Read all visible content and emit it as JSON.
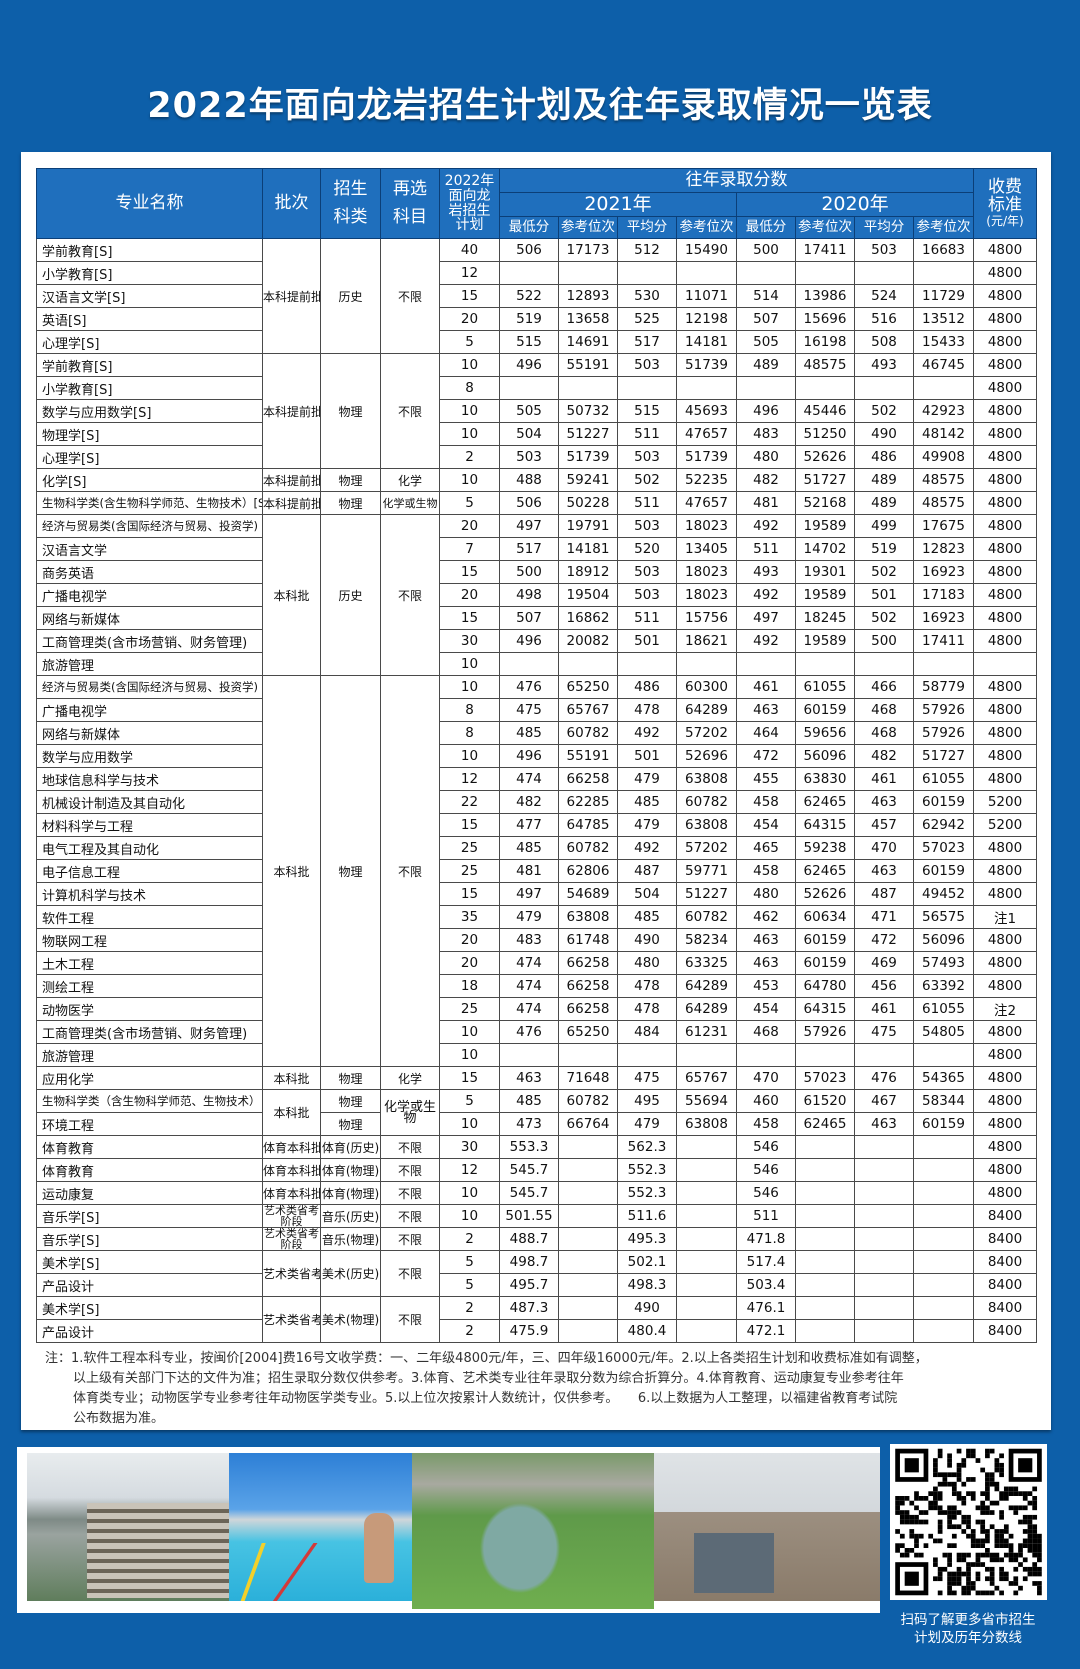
{
  "title": "2022年面向龙岩招生计划及往年录取情况一览表",
  "header": {
    "name": "专业名称",
    "batch": "批次",
    "subject": [
      "招生",
      "科类"
    ],
    "reselect": [
      "再选",
      "科目"
    ],
    "plan": [
      "2022年",
      "面向龙",
      "岩招生",
      "计划"
    ],
    "past": "往年录取分数",
    "year1": "2021年",
    "year2": "2020年",
    "cols": [
      "最低分",
      "参考位次",
      "平均分",
      "参考位次",
      "最低分",
      "参考位次",
      "平均分",
      "参考位次"
    ],
    "fee": [
      "收费",
      "标准",
      "(元/年)"
    ]
  },
  "groups": [
    {
      "batch": "本科提前批",
      "subject": "历史",
      "reselect": "不限",
      "rows": [
        {
          "name": "学前教育[S]",
          "plan": "40",
          "v": [
            "506",
            "17173",
            "512",
            "15490",
            "500",
            "17411",
            "503",
            "16683"
          ],
          "fee": "4800"
        },
        {
          "name": "小学教育[S]",
          "plan": "12",
          "v": [],
          "fee": "4800"
        },
        {
          "name": "汉语言文学[S]",
          "plan": "15",
          "v": [
            "522",
            "12893",
            "530",
            "11071",
            "514",
            "13986",
            "524",
            "11729"
          ],
          "fee": "4800"
        },
        {
          "name": "英语[S]",
          "plan": "20",
          "v": [
            "519",
            "13658",
            "525",
            "12198",
            "507",
            "15696",
            "516",
            "13512"
          ],
          "fee": "4800"
        },
        {
          "name": "心理学[S]",
          "plan": "5",
          "v": [
            "515",
            "14691",
            "517",
            "14181",
            "505",
            "16198",
            "508",
            "15433"
          ],
          "fee": "4800"
        }
      ]
    },
    {
      "batch": "本科提前批",
      "subject": "物理",
      "reselect": "不限",
      "rows": [
        {
          "name": "学前教育[S]",
          "plan": "10",
          "v": [
            "496",
            "55191",
            "503",
            "51739",
            "489",
            "48575",
            "493",
            "46745"
          ],
          "fee": "4800"
        },
        {
          "name": "小学教育[S]",
          "plan": "8",
          "v": [],
          "fee": "4800"
        },
        {
          "name": "数学与应用数学[S]",
          "plan": "10",
          "v": [
            "505",
            "50732",
            "515",
            "45693",
            "496",
            "45446",
            "502",
            "42923"
          ],
          "fee": "4800"
        },
        {
          "name": "物理学[S]",
          "plan": "10",
          "v": [
            "504",
            "51227",
            "511",
            "47657",
            "483",
            "51250",
            "490",
            "48142"
          ],
          "fee": "4800"
        },
        {
          "name": "心理学[S]",
          "plan": "2",
          "v": [
            "503",
            "51739",
            "503",
            "51739",
            "480",
            "52626",
            "486",
            "49908"
          ],
          "fee": "4800"
        }
      ]
    },
    {
      "batch": "本科提前批",
      "subject": "物理",
      "reselect": "化学",
      "rows": [
        {
          "name": "化学[S]",
          "plan": "10",
          "v": [
            "488",
            "59241",
            "502",
            "52235",
            "482",
            "51727",
            "489",
            "48575"
          ],
          "fee": "4800"
        }
      ]
    },
    {
      "batch": "本科提前批",
      "subject": "物理",
      "reselect": "化学或生物",
      "rows": [
        {
          "name": "生物科学类(含生物科学师范、生物技术）[S]",
          "plan": "5",
          "v": [
            "506",
            "50228",
            "511",
            "47657",
            "481",
            "52168",
            "489",
            "48575"
          ],
          "fee": "4800"
        }
      ]
    },
    {
      "batch": "本科批",
      "subject": "历史",
      "reselect": "不限",
      "rows": [
        {
          "name": "经济与贸易类(含国际经济与贸易、投资学)",
          "plan": "20",
          "v": [
            "497",
            "19791",
            "503",
            "18023",
            "492",
            "19589",
            "499",
            "17675"
          ],
          "fee": "4800"
        },
        {
          "name": "汉语言文学",
          "plan": "7",
          "v": [
            "517",
            "14181",
            "520",
            "13405",
            "511",
            "14702",
            "519",
            "12823"
          ],
          "fee": "4800"
        },
        {
          "name": "商务英语",
          "plan": "15",
          "v": [
            "500",
            "18912",
            "503",
            "18023",
            "493",
            "19301",
            "502",
            "16923"
          ],
          "fee": "4800"
        },
        {
          "name": "广播电视学",
          "plan": "20",
          "v": [
            "498",
            "19504",
            "503",
            "18023",
            "492",
            "19589",
            "501",
            "17183"
          ],
          "fee": "4800"
        },
        {
          "name": "网络与新媒体",
          "plan": "15",
          "v": [
            "507",
            "16862",
            "511",
            "15756",
            "497",
            "18245",
            "502",
            "16923"
          ],
          "fee": "4800"
        },
        {
          "name": "工商管理类(含市场营销、财务管理)",
          "plan": "30",
          "v": [
            "496",
            "20082",
            "501",
            "18621",
            "492",
            "19589",
            "500",
            "17411"
          ],
          "fee": "4800"
        },
        {
          "name": "旅游管理",
          "plan": "10",
          "v": [],
          "fee": ""
        }
      ]
    },
    {
      "batch": "本科批",
      "subject": "物理",
      "reselect": "不限",
      "rows": [
        {
          "name": "经济与贸易类(含国际经济与贸易、投资学)",
          "plan": "10",
          "v": [
            "476",
            "65250",
            "486",
            "60300",
            "461",
            "61055",
            "466",
            "58779"
          ],
          "fee": "4800"
        },
        {
          "name": "广播电视学",
          "plan": "8",
          "v": [
            "475",
            "65767",
            "478",
            "64289",
            "463",
            "60159",
            "468",
            "57926"
          ],
          "fee": "4800"
        },
        {
          "name": "网络与新媒体",
          "plan": "8",
          "v": [
            "485",
            "60782",
            "492",
            "57202",
            "464",
            "59656",
            "468",
            "57926"
          ],
          "fee": "4800"
        },
        {
          "name": "数学与应用数学",
          "plan": "10",
          "v": [
            "496",
            "55191",
            "501",
            "52696",
            "472",
            "56096",
            "482",
            "51727"
          ],
          "fee": "4800"
        },
        {
          "name": "地球信息科学与技术",
          "plan": "12",
          "v": [
            "474",
            "66258",
            "479",
            "63808",
            "455",
            "63830",
            "461",
            "61055"
          ],
          "fee": "4800"
        },
        {
          "name": "机械设计制造及其自动化",
          "plan": "22",
          "v": [
            "482",
            "62285",
            "485",
            "60782",
            "458",
            "62465",
            "463",
            "60159"
          ],
          "fee": "5200"
        },
        {
          "name": "材料科学与工程",
          "plan": "15",
          "v": [
            "477",
            "64785",
            "479",
            "63808",
            "454",
            "64315",
            "457",
            "62942"
          ],
          "fee": "5200"
        },
        {
          "name": "电气工程及其自动化",
          "plan": "25",
          "v": [
            "485",
            "60782",
            "492",
            "57202",
            "465",
            "59238",
            "470",
            "57023"
          ],
          "fee": "4800"
        },
        {
          "name": "电子信息工程",
          "plan": "25",
          "v": [
            "481",
            "62806",
            "487",
            "59771",
            "458",
            "62465",
            "463",
            "60159"
          ],
          "fee": "4800"
        },
        {
          "name": "计算机科学与技术",
          "plan": "15",
          "v": [
            "497",
            "54689",
            "504",
            "51227",
            "480",
            "52626",
            "487",
            "49452"
          ],
          "fee": "4800"
        },
        {
          "name": "软件工程",
          "plan": "35",
          "v": [
            "479",
            "63808",
            "485",
            "60782",
            "462",
            "60634",
            "471",
            "56575"
          ],
          "fee": "注1"
        },
        {
          "name": "物联网工程",
          "plan": "20",
          "v": [
            "483",
            "61748",
            "490",
            "58234",
            "463",
            "60159",
            "472",
            "56096"
          ],
          "fee": "4800"
        },
        {
          "name": "土木工程",
          "plan": "20",
          "v": [
            "474",
            "66258",
            "480",
            "63325",
            "463",
            "60159",
            "469",
            "57493"
          ],
          "fee": "4800"
        },
        {
          "name": "测绘工程",
          "plan": "18",
          "v": [
            "474",
            "66258",
            "478",
            "64289",
            "453",
            "64780",
            "456",
            "63392"
          ],
          "fee": "4800"
        },
        {
          "name": "动物医学",
          "plan": "25",
          "v": [
            "474",
            "66258",
            "478",
            "64289",
            "454",
            "64315",
            "461",
            "61055"
          ],
          "fee": "注2"
        },
        {
          "name": "工商管理类(含市场营销、财务管理)",
          "plan": "10",
          "v": [
            "476",
            "65250",
            "484",
            "61231",
            "468",
            "57926",
            "475",
            "54805"
          ],
          "fee": "4800"
        },
        {
          "name": "旅游管理",
          "plan": "10",
          "v": [],
          "fee": "4800"
        }
      ]
    },
    {
      "batch": "本科批",
      "subject": "物理",
      "reselect": "化学",
      "rows": [
        {
          "name": "应用化学",
          "plan": "15",
          "v": [
            "463",
            "71648",
            "475",
            "65767",
            "470",
            "57023",
            "476",
            "54365"
          ],
          "fee": "4800"
        }
      ]
    },
    {
      "batch": "本科批",
      "reselect": "化学或生物",
      "rows": [
        {
          "name": "生物科学类（含生物科学师范、生物技术）",
          "subject": "物理",
          "plan": "5",
          "v": [
            "485",
            "60782",
            "495",
            "55694",
            "460",
            "61520",
            "467",
            "58344"
          ],
          "fee": "4800"
        },
        {
          "name": "环境工程",
          "subject": "物理",
          "plan": "10",
          "v": [
            "473",
            "66764",
            "479",
            "63808",
            "458",
            "62465",
            "463",
            "60159"
          ],
          "fee": "4800"
        }
      ]
    },
    {
      "batch": "体育本科批",
      "subject": "体育(历史)",
      "reselect": "不限",
      "rows": [
        {
          "name": "体育教育",
          "plan": "30",
          "v": [
            "553.3",
            "",
            "562.3",
            "",
            "546",
            "",
            "",
            ""
          ],
          "fee": "4800"
        }
      ]
    },
    {
      "batch": "体育本科批",
      "subject": "体育(物理)",
      "reselect": "不限",
      "rows": [
        {
          "name": "体育教育",
          "plan": "12",
          "v": [
            "545.7",
            "",
            "552.3",
            "",
            "546",
            "",
            "",
            ""
          ],
          "fee": "4800"
        }
      ]
    },
    {
      "batch": "体育本科批",
      "subject": "体育(物理)",
      "reselect": "不限",
      "rows": [
        {
          "name": "运动康复",
          "plan": "10",
          "v": [
            "545.7",
            "",
            "552.3",
            "",
            "546",
            "",
            "",
            ""
          ],
          "fee": "4800"
        }
      ]
    },
    {
      "batch": "艺术类省考阶段",
      "subject": "音乐(历史)",
      "reselect": "不限",
      "small": true,
      "rows": [
        {
          "name": "音乐学[S]",
          "plan": "10",
          "v": [
            "501.55",
            "",
            "511.6",
            "",
            "511",
            "",
            "",
            ""
          ],
          "fee": "8400"
        }
      ]
    },
    {
      "batch": "艺术类省考阶段",
      "subject": "音乐(物理)",
      "reselect": "不限",
      "small": true,
      "rows": [
        {
          "name": "音乐学[S]",
          "plan": "2",
          "v": [
            "488.7",
            "",
            "495.3",
            "",
            "471.8",
            "",
            "",
            ""
          ],
          "fee": "8400"
        }
      ]
    },
    {
      "batch": "艺术类省考阶段",
      "subject": "美术(历史)",
      "reselect": "不限",
      "rows": [
        {
          "name": "美术学[S]",
          "plan": "5",
          "v": [
            "498.7",
            "",
            "502.1",
            "",
            "517.4",
            "",
            "",
            ""
          ],
          "fee": "8400"
        },
        {
          "name": "产品设计",
          "plan": "5",
          "v": [
            "495.7",
            "",
            "498.3",
            "",
            "503.4",
            "",
            "",
            ""
          ],
          "fee": "8400"
        }
      ]
    },
    {
      "batch": "艺术类省考阶段",
      "subject": "美术(物理)",
      "reselect": "不限",
      "rows": [
        {
          "name": "美术学[S]",
          "plan": "2",
          "v": [
            "487.3",
            "",
            "490",
            "",
            "476.1",
            "",
            "",
            ""
          ],
          "fee": "8400"
        },
        {
          "name": "产品设计",
          "plan": "2",
          "v": [
            "475.9",
            "",
            "480.4",
            "",
            "472.1",
            "",
            "",
            ""
          ],
          "fee": "8400"
        }
      ]
    }
  ],
  "notes": [
    "注：1.软件工程本科专业，按闽价[2004]费16号文收学费：一、二年级4800元/年，三、四年级16000元/年。2.以上各类招生计划和收费标准如有调整，",
    "以上级有关部门下达的文件为准；招生录取分数仅供参考。3.体育、艺术类专业往年录取分数为综合折算分。4.体育教育、运动康复专业参考往年",
    "体育类专业；动物医学专业参考往年动物医学类专业。5.以上位次按累计人数统计，仅供参考。　　6.以上数据为人工整理，以福建省教育考试院",
    "公布数据为准。"
  ],
  "qr_caption": [
    "扫码了解更多省市招生",
    "计划及历年分数线"
  ],
  "colors": {
    "background": "#0d5fa9",
    "header": "#1f6fbd",
    "accent_red": "#d22222"
  }
}
